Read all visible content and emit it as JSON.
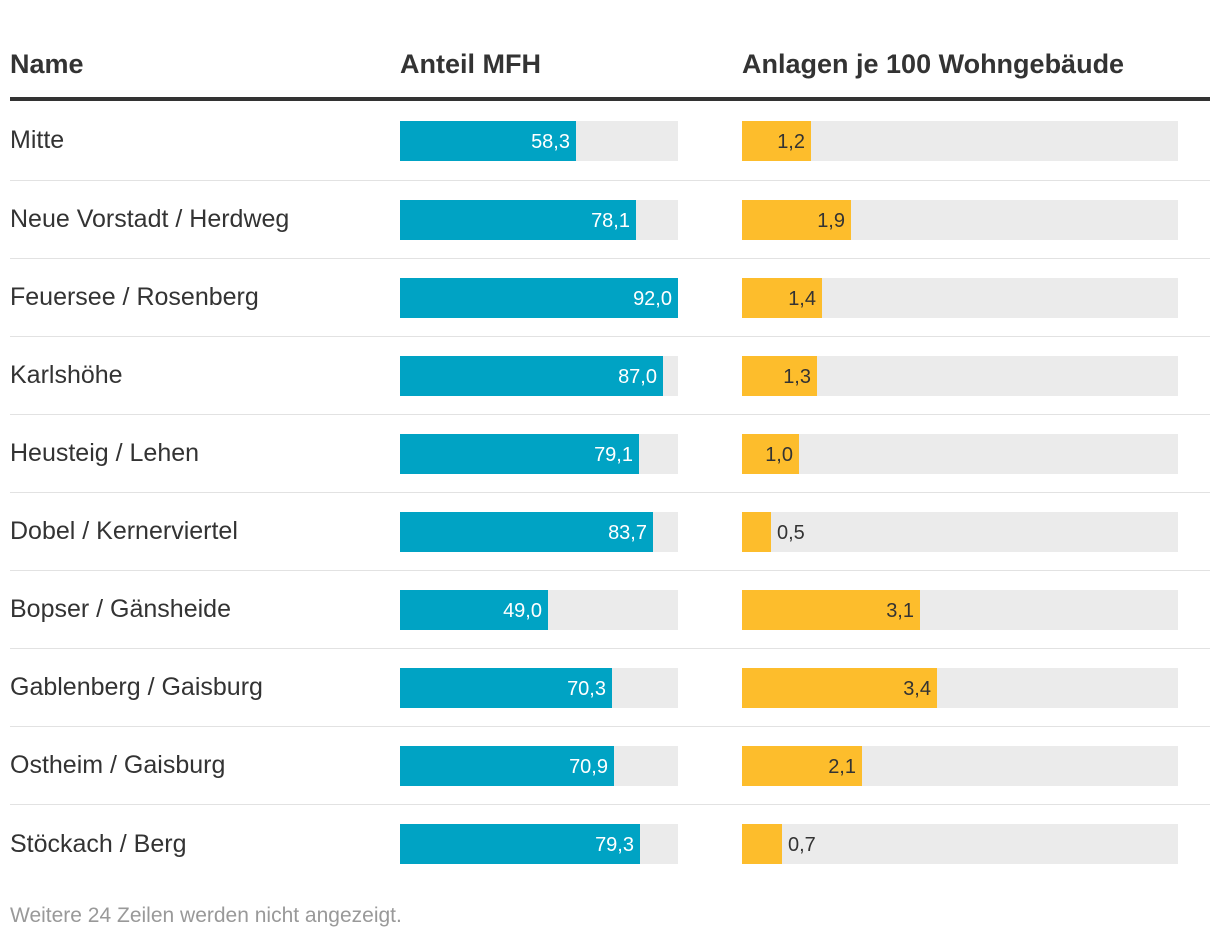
{
  "chart_data": {
    "type": "table",
    "columns": [
      "Name",
      "Anteil MFH",
      "Anlagen je 100 Wohngebäude"
    ],
    "mfh_max": 92.0,
    "anlagen_max": 7.6,
    "rows": [
      {
        "name": "Mitte",
        "mfh": 58.3,
        "mfh_label": "58,3",
        "anlagen": 1.2,
        "anlagen_label": "1,2"
      },
      {
        "name": "Neue Vorstadt / Herdweg",
        "mfh": 78.1,
        "mfh_label": "78,1",
        "anlagen": 1.9,
        "anlagen_label": "1,9"
      },
      {
        "name": "Feuersee / Rosenberg",
        "mfh": 92.0,
        "mfh_label": "92,0",
        "anlagen": 1.4,
        "anlagen_label": "1,4"
      },
      {
        "name": "Karlshöhe",
        "mfh": 87.0,
        "mfh_label": "87,0",
        "anlagen": 1.3,
        "anlagen_label": "1,3"
      },
      {
        "name": "Heusteig / Lehen",
        "mfh": 79.1,
        "mfh_label": "79,1",
        "anlagen": 1.0,
        "anlagen_label": "1,0"
      },
      {
        "name": "Dobel / Kernerviertel",
        "mfh": 83.7,
        "mfh_label": "83,7",
        "anlagen": 0.5,
        "anlagen_label": "0,5"
      },
      {
        "name": "Bopser / Gänsheide",
        "mfh": 49.0,
        "mfh_label": "49,0",
        "anlagen": 3.1,
        "anlagen_label": "3,1"
      },
      {
        "name": "Gablenberg / Gaisburg",
        "mfh": 70.3,
        "mfh_label": "70,3",
        "anlagen": 3.4,
        "anlagen_label": "3,4"
      },
      {
        "name": "Ostheim / Gaisburg",
        "mfh": 70.9,
        "mfh_label": "70,9",
        "anlagen": 2.1,
        "anlagen_label": "2,1"
      },
      {
        "name": "Stöckach / Berg",
        "mfh": 79.3,
        "mfh_label": "79,3",
        "anlagen": 0.7,
        "anlagen_label": "0,7"
      }
    ],
    "footer": "Weitere 24 Zeilen werden nicht angezeigt."
  },
  "colors": {
    "mfh_bar": "#00a3c4",
    "anlagen_bar": "#fdbd2c",
    "track": "#ebebeb",
    "label_inside_mfh": "#ffffff",
    "label_inside_anlagen": "#333333",
    "label_outside": "#333333"
  }
}
